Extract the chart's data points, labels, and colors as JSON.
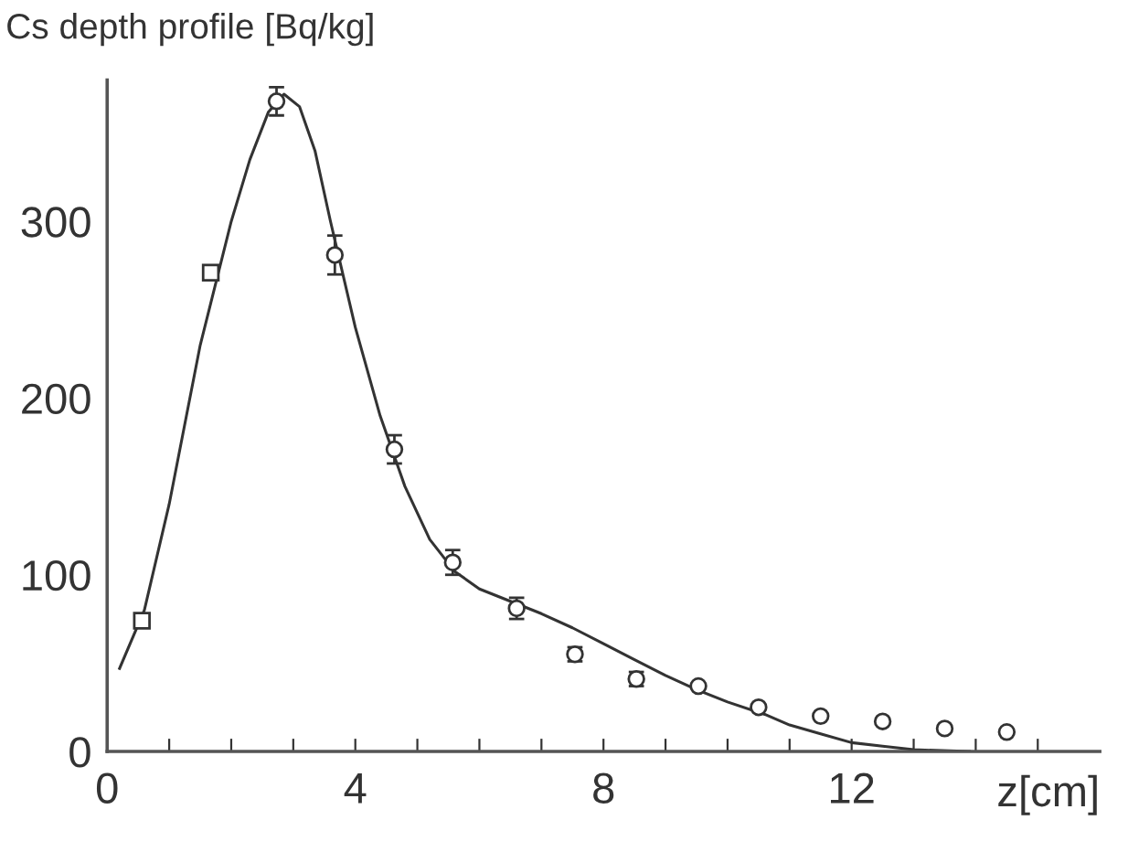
{
  "chart_data": {
    "type": "scatter",
    "ylabel": "Cs depth profile [Bq/kg]",
    "xlabel": "z[cm]",
    "xlim": [
      0,
      16
    ],
    "ylim": [
      0,
      380
    ],
    "xticks": [
      0,
      {
        "value": 1,
        "label": null
      },
      {
        "value": 2,
        "label": null
      },
      {
        "value": 3,
        "label": null
      },
      4,
      {
        "value": 5,
        "label": null
      },
      {
        "value": 6,
        "label": null
      },
      {
        "value": 7,
        "label": null
      },
      8,
      {
        "value": 9,
        "label": null
      },
      {
        "value": 10,
        "label": null
      },
      {
        "value": 11,
        "label": null
      },
      12,
      {
        "value": 13,
        "label": null
      },
      {
        "value": 14,
        "label": null
      },
      {
        "value": 15,
        "label": null
      }
    ],
    "yticks": [
      0,
      100,
      200,
      300
    ],
    "grid": false,
    "legend": false,
    "series": [
      {
        "marker": "square",
        "color": "#333333",
        "x": [
          0.56,
          1.67
        ],
        "values": [
          74,
          271
        ],
        "errors": [
          null,
          null
        ]
      },
      {
        "marker": "circle",
        "color": "#333333",
        "x": [
          2.73,
          3.67,
          4.63,
          5.57,
          6.6,
          7.54,
          8.53,
          9.53,
          10.5,
          11.5,
          12.5,
          13.5,
          14.5
        ],
        "values": [
          368,
          281,
          171,
          107,
          81,
          55,
          41,
          37,
          25,
          20,
          17,
          13,
          11
        ],
        "errors": [
          8,
          11,
          8,
          7,
          6,
          4,
          4,
          null,
          null,
          null,
          null,
          null,
          null
        ]
      },
      {
        "type": "line",
        "marker": "none",
        "line_style": "solid",
        "color": "#333333",
        "x": [
          0.2,
          0.6,
          1.0,
          1.5,
          2.0,
          2.3,
          2.6,
          2.85,
          3.1,
          3.35,
          3.6,
          4.0,
          4.4,
          4.8,
          5.2,
          5.6,
          6.0,
          6.5,
          7.0,
          7.5,
          8.0,
          8.5,
          9.0,
          9.5,
          10.0,
          10.6,
          11.0,
          11.5,
          12.0,
          12.5,
          13.0,
          13.9
        ],
        "values": [
          47,
          80,
          140,
          230,
          300,
          335,
          362,
          372,
          365,
          340,
          300,
          240,
          190,
          150,
          120,
          102,
          92,
          85,
          78,
          70,
          61,
          52,
          43,
          35,
          28,
          21,
          15,
          10,
          5,
          3,
          1,
          0
        ]
      }
    ]
  }
}
